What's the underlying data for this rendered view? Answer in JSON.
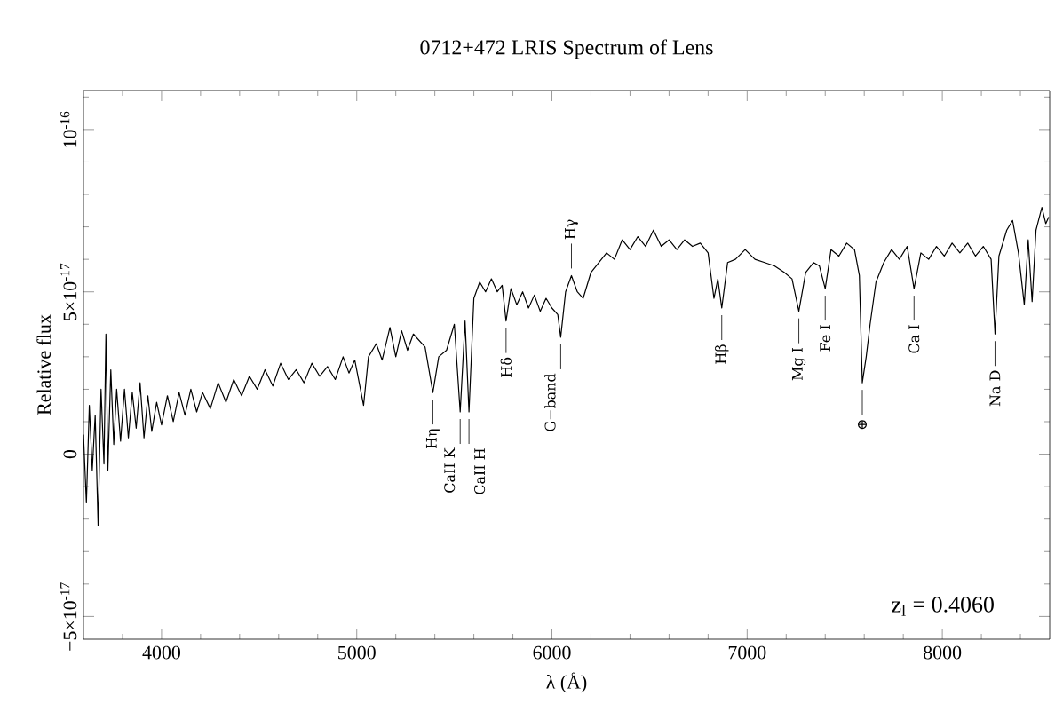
{
  "chart_data": {
    "type": "line",
    "title": "0712+472 LRIS Spectrum of Lens",
    "xlabel": "λ (Å)",
    "ylabel": "Relative flux",
    "x": [
      3600,
      3615,
      3630,
      3645,
      3660,
      3675,
      3690,
      3705,
      3715,
      3725,
      3740,
      3755,
      3770,
      3790,
      3810,
      3830,
      3850,
      3870,
      3890,
      3910,
      3930,
      3950,
      3975,
      4000,
      4030,
      4060,
      4090,
      4120,
      4150,
      4180,
      4210,
      4250,
      4290,
      4330,
      4370,
      4410,
      4450,
      4490,
      4530,
      4570,
      4610,
      4650,
      4690,
      4730,
      4770,
      4810,
      4850,
      4890,
      4930,
      4960,
      4990,
      5035,
      5060,
      5100,
      5130,
      5170,
      5200,
      5230,
      5260,
      5290,
      5350,
      5390,
      5420,
      5460,
      5500,
      5530,
      5555,
      5575,
      5600,
      5630,
      5660,
      5690,
      5720,
      5745,
      5765,
      5790,
      5820,
      5850,
      5880,
      5910,
      5940,
      5970,
      6000,
      6030,
      6045,
      6070,
      6100,
      6130,
      6160,
      6200,
      6240,
      6280,
      6320,
      6360,
      6400,
      6440,
      6480,
      6520,
      6560,
      6600,
      6640,
      6680,
      6720,
      6760,
      6800,
      6830,
      6850,
      6870,
      6900,
      6940,
      6990,
      7040,
      7090,
      7140,
      7190,
      7230,
      7265,
      7300,
      7340,
      7370,
      7400,
      7430,
      7470,
      7510,
      7550,
      7575,
      7590,
      7610,
      7630,
      7660,
      7700,
      7740,
      7780,
      7820,
      7855,
      7890,
      7930,
      7970,
      8010,
      8050,
      8090,
      8130,
      8170,
      8210,
      8250,
      8270,
      8290,
      8330,
      8360,
      8390,
      8420,
      8440,
      8460,
      8480,
      8510,
      8530,
      8545
    ],
    "values": [
      6e-18,
      -1.5e-17,
      1.5e-17,
      -5e-18,
      1.2e-17,
      -2.2e-17,
      2e-17,
      -3e-18,
      3.7e-17,
      -5e-18,
      2.6e-17,
      3e-18,
      2e-17,
      4e-18,
      2e-17,
      5e-18,
      1.9e-17,
      8e-18,
      2.2e-17,
      5e-18,
      1.8e-17,
      7e-18,
      1.6e-17,
      9e-18,
      1.8e-17,
      1e-17,
      1.9e-17,
      1.2e-17,
      2e-17,
      1.3e-17,
      1.9e-17,
      1.4e-17,
      2.2e-17,
      1.6e-17,
      2.3e-17,
      1.8e-17,
      2.4e-17,
      2e-17,
      2.6e-17,
      2.1e-17,
      2.8e-17,
      2.3e-17,
      2.6e-17,
      2.2e-17,
      2.8e-17,
      2.4e-17,
      2.7e-17,
      2.3e-17,
      3e-17,
      2.5e-17,
      2.9e-17,
      1.5e-17,
      3e-17,
      3.4e-17,
      2.9e-17,
      3.9e-17,
      3e-17,
      3.8e-17,
      3.2e-17,
      3.7e-17,
      3.3e-17,
      1.9e-17,
      3e-17,
      3.2e-17,
      4e-17,
      1.3e-17,
      4.1e-17,
      1.3e-17,
      4.8e-17,
      5.3e-17,
      5e-17,
      5.4e-17,
      5e-17,
      5.2e-17,
      4.1e-17,
      5.1e-17,
      4.6e-17,
      5e-17,
      4.5e-17,
      4.9e-17,
      4.4e-17,
      4.8e-17,
      4.5e-17,
      4.3e-17,
      3.6e-17,
      5e-17,
      5.5e-17,
      5e-17,
      4.8e-17,
      5.6e-17,
      5.9e-17,
      6.2e-17,
      6e-17,
      6.6e-17,
      6.3e-17,
      6.7e-17,
      6.4e-17,
      6.9e-17,
      6.4e-17,
      6.6e-17,
      6.3e-17,
      6.6e-17,
      6.4e-17,
      6.5e-17,
      6.2e-17,
      4.8e-17,
      5.4e-17,
      4.5e-17,
      5.9e-17,
      6e-17,
      6.3e-17,
      6e-17,
      5.9e-17,
      5.8e-17,
      5.6e-17,
      5.4e-17,
      4.4e-17,
      5.6e-17,
      5.9e-17,
      5.8e-17,
      5.1e-17,
      6.3e-17,
      6.1e-17,
      6.5e-17,
      6.3e-17,
      5.5e-17,
      2.2e-17,
      3e-17,
      4e-17,
      5.3e-17,
      5.9e-17,
      6.3e-17,
      6e-17,
      6.4e-17,
      5.1e-17,
      6.2e-17,
      6e-17,
      6.4e-17,
      6.1e-17,
      6.5e-17,
      6.2e-17,
      6.5e-17,
      6.1e-17,
      6.4e-17,
      6e-17,
      3.7e-17,
      6.1e-17,
      6.9e-17,
      7.2e-17,
      6.2e-17,
      4.6e-17,
      6.6e-17,
      4.7e-17,
      6.9e-17,
      7.6e-17,
      7.1e-17,
      7.3e-17
    ],
    "color": "#000000",
    "marker": "none",
    "line_style": "solid",
    "grid": false,
    "xlim": [
      3600,
      8550
    ],
    "xticks": [
      {
        "value": 3800,
        "label": null
      },
      4000,
      {
        "value": 4200,
        "label": null
      },
      {
        "value": 4400,
        "label": null
      },
      {
        "value": 4600,
        "label": null
      },
      {
        "value": 4800,
        "label": null
      },
      5000,
      {
        "value": 5200,
        "label": null
      },
      {
        "value": 5400,
        "label": null
      },
      {
        "value": 5600,
        "label": null
      },
      {
        "value": 5800,
        "label": null
      },
      6000,
      {
        "value": 6200,
        "label": null
      },
      {
        "value": 6400,
        "label": null
      },
      {
        "value": 6600,
        "label": null
      },
      {
        "value": 6800,
        "label": null
      },
      7000,
      {
        "value": 7200,
        "label": null
      },
      {
        "value": 7400,
        "label": null
      },
      {
        "value": 7600,
        "label": null
      },
      {
        "value": 7800,
        "label": null
      },
      8000,
      {
        "value": 8200,
        "label": null
      },
      {
        "value": 8400,
        "label": null
      }
    ],
    "ylim": [
      -5.7e-17,
      1.12e-16
    ],
    "yticks": [
      {
        "value": -5e-17,
        "label": "−5×10$^{-17}$"
      },
      {
        "value": -4e-17,
        "label": null
      },
      {
        "value": -3e-17,
        "label": null
      },
      {
        "value": -2e-17,
        "label": null
      },
      {
        "value": -1e-17,
        "label": null
      },
      0,
      {
        "value": 1e-17,
        "label": null
      },
      {
        "value": 2e-17,
        "label": null
      },
      {
        "value": 3e-17,
        "label": null
      },
      {
        "value": 4e-17,
        "label": null
      },
      {
        "value": 5e-17,
        "label": "5×10$^{-17}$"
      },
      {
        "value": 6e-17,
        "label": null
      },
      {
        "value": 7e-17,
        "label": null
      },
      {
        "value": 8e-17,
        "label": null
      },
      {
        "value": 9e-17,
        "label": null
      },
      {
        "value": 1e-16,
        "label": "10$^{-16}$"
      },
      {
        "value": 1.1e-16,
        "label": null
      }
    ],
    "annotations": [
      {
        "text": "Hη",
        "x": 5390,
        "y": 1.9e-17
      },
      {
        "text": "CaII K",
        "x": 5530,
        "y": 1.3e-17
      },
      {
        "text": "CaII H",
        "x": 5575,
        "y": 1.3e-17
      },
      {
        "text": "Hδ",
        "x": 5765,
        "y": 4.1e-17
      },
      {
        "text": "G−band",
        "x": 6045,
        "y": 3.6e-17
      },
      {
        "text": "Hγ",
        "x": 6100,
        "y": 5.5e-17
      },
      {
        "text": "Hβ",
        "x": 6870,
        "y": 4.5e-17
      },
      {
        "text": "Mg I",
        "x": 7265,
        "y": 4.4e-17
      },
      {
        "text": "Fe I",
        "x": 7400,
        "y": 5.1e-17
      },
      {
        "text": "⊕",
        "x": 7590,
        "y": 2.2e-17
      },
      {
        "text": "Ca I",
        "x": 7855,
        "y": 5.1e-17
      },
      {
        "text": "Na D",
        "x": 8270,
        "y": 3.7e-17
      },
      "z$_{l}$ = 0.4060"
    ]
  }
}
